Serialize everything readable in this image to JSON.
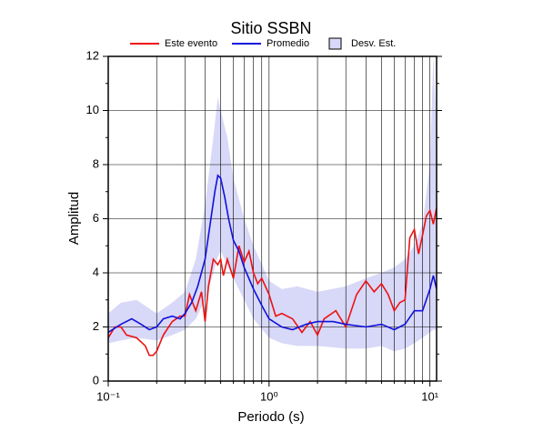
{
  "chart_data": {
    "type": "line",
    "title": "Sitio SSBN",
    "xlabel": "Periodo (s)",
    "ylabel": "Amplitud",
    "xscale": "log",
    "xlim": [
      0.1,
      11
    ],
    "ylim": [
      0,
      12
    ],
    "xticks": [
      {
        "value": 0.1,
        "label": "10⁻¹"
      },
      {
        "value": 1,
        "label": "10⁰"
      },
      {
        "value": 10,
        "label": "10¹"
      }
    ],
    "xminorticks": [
      0.2,
      0.3,
      0.4,
      0.5,
      0.6,
      0.7,
      0.8,
      0.9,
      2,
      3,
      4,
      5,
      6,
      7,
      8,
      9
    ],
    "yticks": [
      0,
      2,
      4,
      6,
      8,
      10,
      12
    ],
    "yminorticks": [
      1,
      3,
      5,
      7,
      9,
      11
    ],
    "grid": true,
    "legend": "top",
    "series": [
      {
        "name": "Este evento",
        "color": "#ee1111",
        "x": [
          0.1,
          0.11,
          0.12,
          0.13,
          0.15,
          0.17,
          0.18,
          0.19,
          0.2,
          0.22,
          0.25,
          0.28,
          0.3,
          0.32,
          0.35,
          0.38,
          0.4,
          0.42,
          0.45,
          0.48,
          0.5,
          0.52,
          0.55,
          0.6,
          0.65,
          0.7,
          0.75,
          0.8,
          0.85,
          0.9,
          1.0,
          1.1,
          1.2,
          1.4,
          1.6,
          1.8,
          2,
          2.2,
          2.6,
          3,
          3.5,
          4,
          4.5,
          5,
          5.5,
          6,
          6.5,
          7,
          7.5,
          8,
          8.5,
          9,
          9.5,
          10,
          10.5,
          11
        ],
        "values": [
          1.6,
          2.0,
          2.0,
          1.7,
          1.6,
          1.3,
          0.95,
          0.95,
          1.1,
          1.7,
          2.2,
          2.4,
          2.4,
          3.2,
          2.6,
          3.3,
          2.2,
          3.5,
          4.5,
          4.3,
          4.5,
          3.9,
          4.5,
          3.8,
          5.0,
          4.4,
          4.8,
          4.0,
          3.6,
          3.8,
          3.2,
          2.4,
          2.5,
          2.3,
          1.8,
          2.2,
          1.7,
          2.3,
          2.6,
          2.0,
          3.2,
          3.7,
          3.3,
          3.6,
          3.2,
          2.6,
          2.9,
          3.0,
          5.3,
          5.6,
          4.7,
          5.4,
          6.1,
          6.3,
          5.8,
          6.4
        ]
      },
      {
        "name": "Promedio",
        "color": "#1111dd",
        "x": [
          0.1,
          0.12,
          0.14,
          0.16,
          0.18,
          0.2,
          0.22,
          0.25,
          0.28,
          0.3,
          0.33,
          0.36,
          0.4,
          0.43,
          0.46,
          0.48,
          0.5,
          0.53,
          0.56,
          0.6,
          0.65,
          0.7,
          0.8,
          0.9,
          1.0,
          1.2,
          1.4,
          1.7,
          2.0,
          2.5,
          3.0,
          4,
          5,
          6,
          7,
          8,
          9,
          10,
          10.5,
          11
        ],
        "values": [
          1.8,
          2.1,
          2.3,
          2.1,
          1.9,
          2.0,
          2.3,
          2.4,
          2.3,
          2.5,
          2.9,
          3.5,
          4.5,
          5.8,
          7.0,
          7.6,
          7.5,
          6.8,
          6.0,
          5.2,
          4.8,
          4.2,
          3.4,
          2.8,
          2.3,
          2.0,
          1.9,
          2.1,
          2.2,
          2.2,
          2.1,
          2.0,
          2.1,
          1.9,
          2.1,
          2.6,
          2.6,
          3.4,
          3.9,
          3.4
        ]
      },
      {
        "name": "Desv. Est.",
        "type": "band",
        "color": "#d8d8f8",
        "x": [
          0.1,
          0.12,
          0.15,
          0.2,
          0.25,
          0.3,
          0.35,
          0.4,
          0.45,
          0.48,
          0.5,
          0.55,
          0.6,
          0.7,
          0.8,
          1,
          1.2,
          1.5,
          2,
          3,
          4,
          5,
          6,
          7,
          8,
          9,
          10,
          10.5,
          11
        ],
        "upper": [
          2.5,
          2.9,
          3.0,
          2.5,
          2.9,
          3.3,
          4.5,
          6.5,
          9,
          10.5,
          10,
          9,
          7.5,
          6,
          5,
          3.7,
          3.4,
          3.5,
          3.3,
          3.5,
          3.8,
          4.0,
          4.2,
          4.5,
          5,
          5.8,
          8,
          12,
          9
        ],
        "lower": [
          1.4,
          1.5,
          1.6,
          1.5,
          1.7,
          1.9,
          2.3,
          3.0,
          4.0,
          4.6,
          4.8,
          4.3,
          3.8,
          3.0,
          2.3,
          1.6,
          1.4,
          1.3,
          1.3,
          1.2,
          1.2,
          1.3,
          1.1,
          1.2,
          1.4,
          1.6,
          1.8,
          1.9,
          1.9
        ]
      }
    ]
  }
}
